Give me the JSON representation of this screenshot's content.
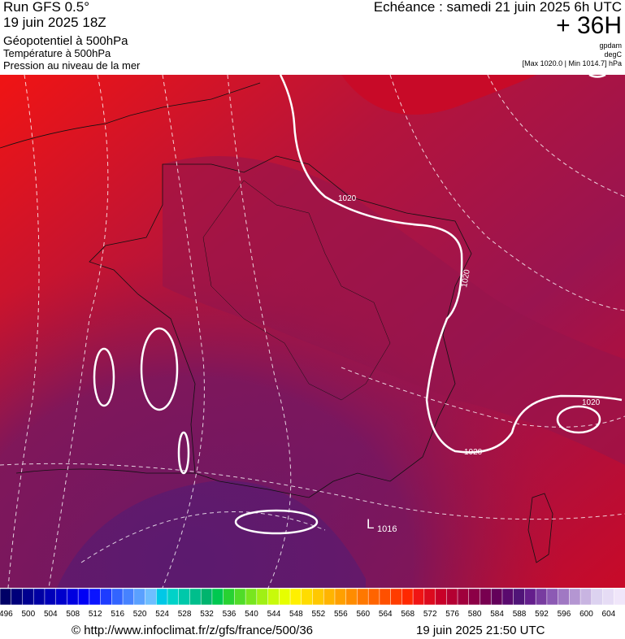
{
  "header": {
    "run": "Run GFS 0.5°",
    "run_date": "19 juin 2025 18Z",
    "fields": [
      "Géopotentiel à 500hPa",
      "Température à 500hPa",
      "Pression au niveau de la mer"
    ],
    "valid_time": "Echéance : samedi 21 juin 2025 6h UTC",
    "lead": "+ 36H",
    "units": [
      "gpdam",
      "degC",
      "[Max 1020.0 | Min 1014.7] hPa"
    ]
  },
  "map": {
    "isobar_labels": [
      "1020",
      "1020",
      "1020",
      "1020"
    ],
    "low_label": "L",
    "low_value": "1016"
  },
  "legend": {
    "ticks": [
      496,
      500,
      504,
      508,
      512,
      516,
      520,
      524,
      528,
      532,
      536,
      540,
      544,
      548,
      552,
      556,
      560,
      564,
      568,
      572,
      576,
      580,
      584,
      588,
      592,
      596,
      600,
      604
    ],
    "colors": [
      "#000066",
      "#00007a",
      "#00008f",
      "#0000a3",
      "#0000b8",
      "#0000cc",
      "#0000e0",
      "#0000f5",
      "#0a14ff",
      "#1e3cff",
      "#3264ff",
      "#4682ff",
      "#5aa0ff",
      "#6ebeff",
      "#00c8e6",
      "#00d2c8",
      "#00c8aa",
      "#00be8c",
      "#00b46e",
      "#00c850",
      "#28d232",
      "#50dc28",
      "#78e61e",
      "#a0f014",
      "#c8fa0a",
      "#e6ff00",
      "#fff000",
      "#ffdc00",
      "#ffc800",
      "#ffb400",
      "#ffa000",
      "#ff8c00",
      "#ff7800",
      "#ff6400",
      "#ff5000",
      "#ff3c00",
      "#ff2800",
      "#f01414",
      "#dc0a1e",
      "#c80028",
      "#b40032",
      "#a0003c",
      "#8c0046",
      "#780050",
      "#64005a",
      "#5a0a6e",
      "#501478",
      "#641e8c",
      "#783ca0",
      "#8c5ab4",
      "#a078c3",
      "#b496d2",
      "#c8b4e1",
      "#dcd2f0",
      "#e6dcf5",
      "#f0e6fa"
    ]
  },
  "footer": {
    "source": "© http://www.infoclimat.fr/z/gfs/france/500/36",
    "generated": "19 juin 2025 21:50 UTC"
  }
}
